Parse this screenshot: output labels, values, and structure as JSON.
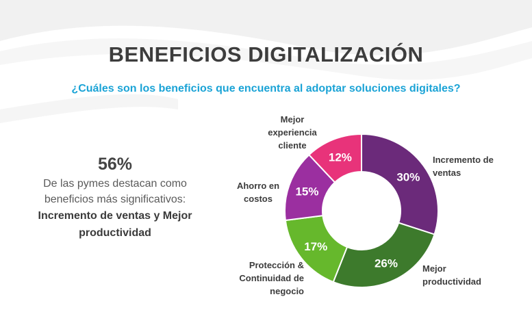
{
  "header": {
    "title": "BENEFICIOS DIGITALIZACIÓN",
    "subtitle": "¿Cuáles son los beneficios que encuentra al adoptar soluciones digitales?"
  },
  "stat": {
    "value": "56%",
    "line1": "De las pymes destacan como",
    "line2": "beneficios más significativos:",
    "highlight1": "Incremento de ventas y Mejor",
    "highlight2": "productividad"
  },
  "chart_data": {
    "type": "pie",
    "donut": true,
    "categories": [
      "Incremento de ventas",
      "Mejor productividad",
      "Protección & Continuidad de negocio",
      "Ahorro en costos",
      "Mejor experiencia cliente"
    ],
    "values": [
      30,
      26,
      17,
      15,
      12
    ],
    "value_labels": [
      "30%",
      "26%",
      "17%",
      "15%",
      "12%"
    ],
    "label_lines": [
      [
        "Incremento de",
        "ventas"
      ],
      [
        "Mejor",
        "productividad"
      ],
      [
        "Protección &",
        "Continuidad de",
        "negocio"
      ],
      [
        "Ahorro en",
        "costos"
      ],
      [
        "Mejor",
        "experiencia",
        "cliente"
      ]
    ],
    "colors": [
      "#6b2a7a",
      "#3d7a2c",
      "#66b82c",
      "#9b2fa0",
      "#e8337a"
    ]
  }
}
